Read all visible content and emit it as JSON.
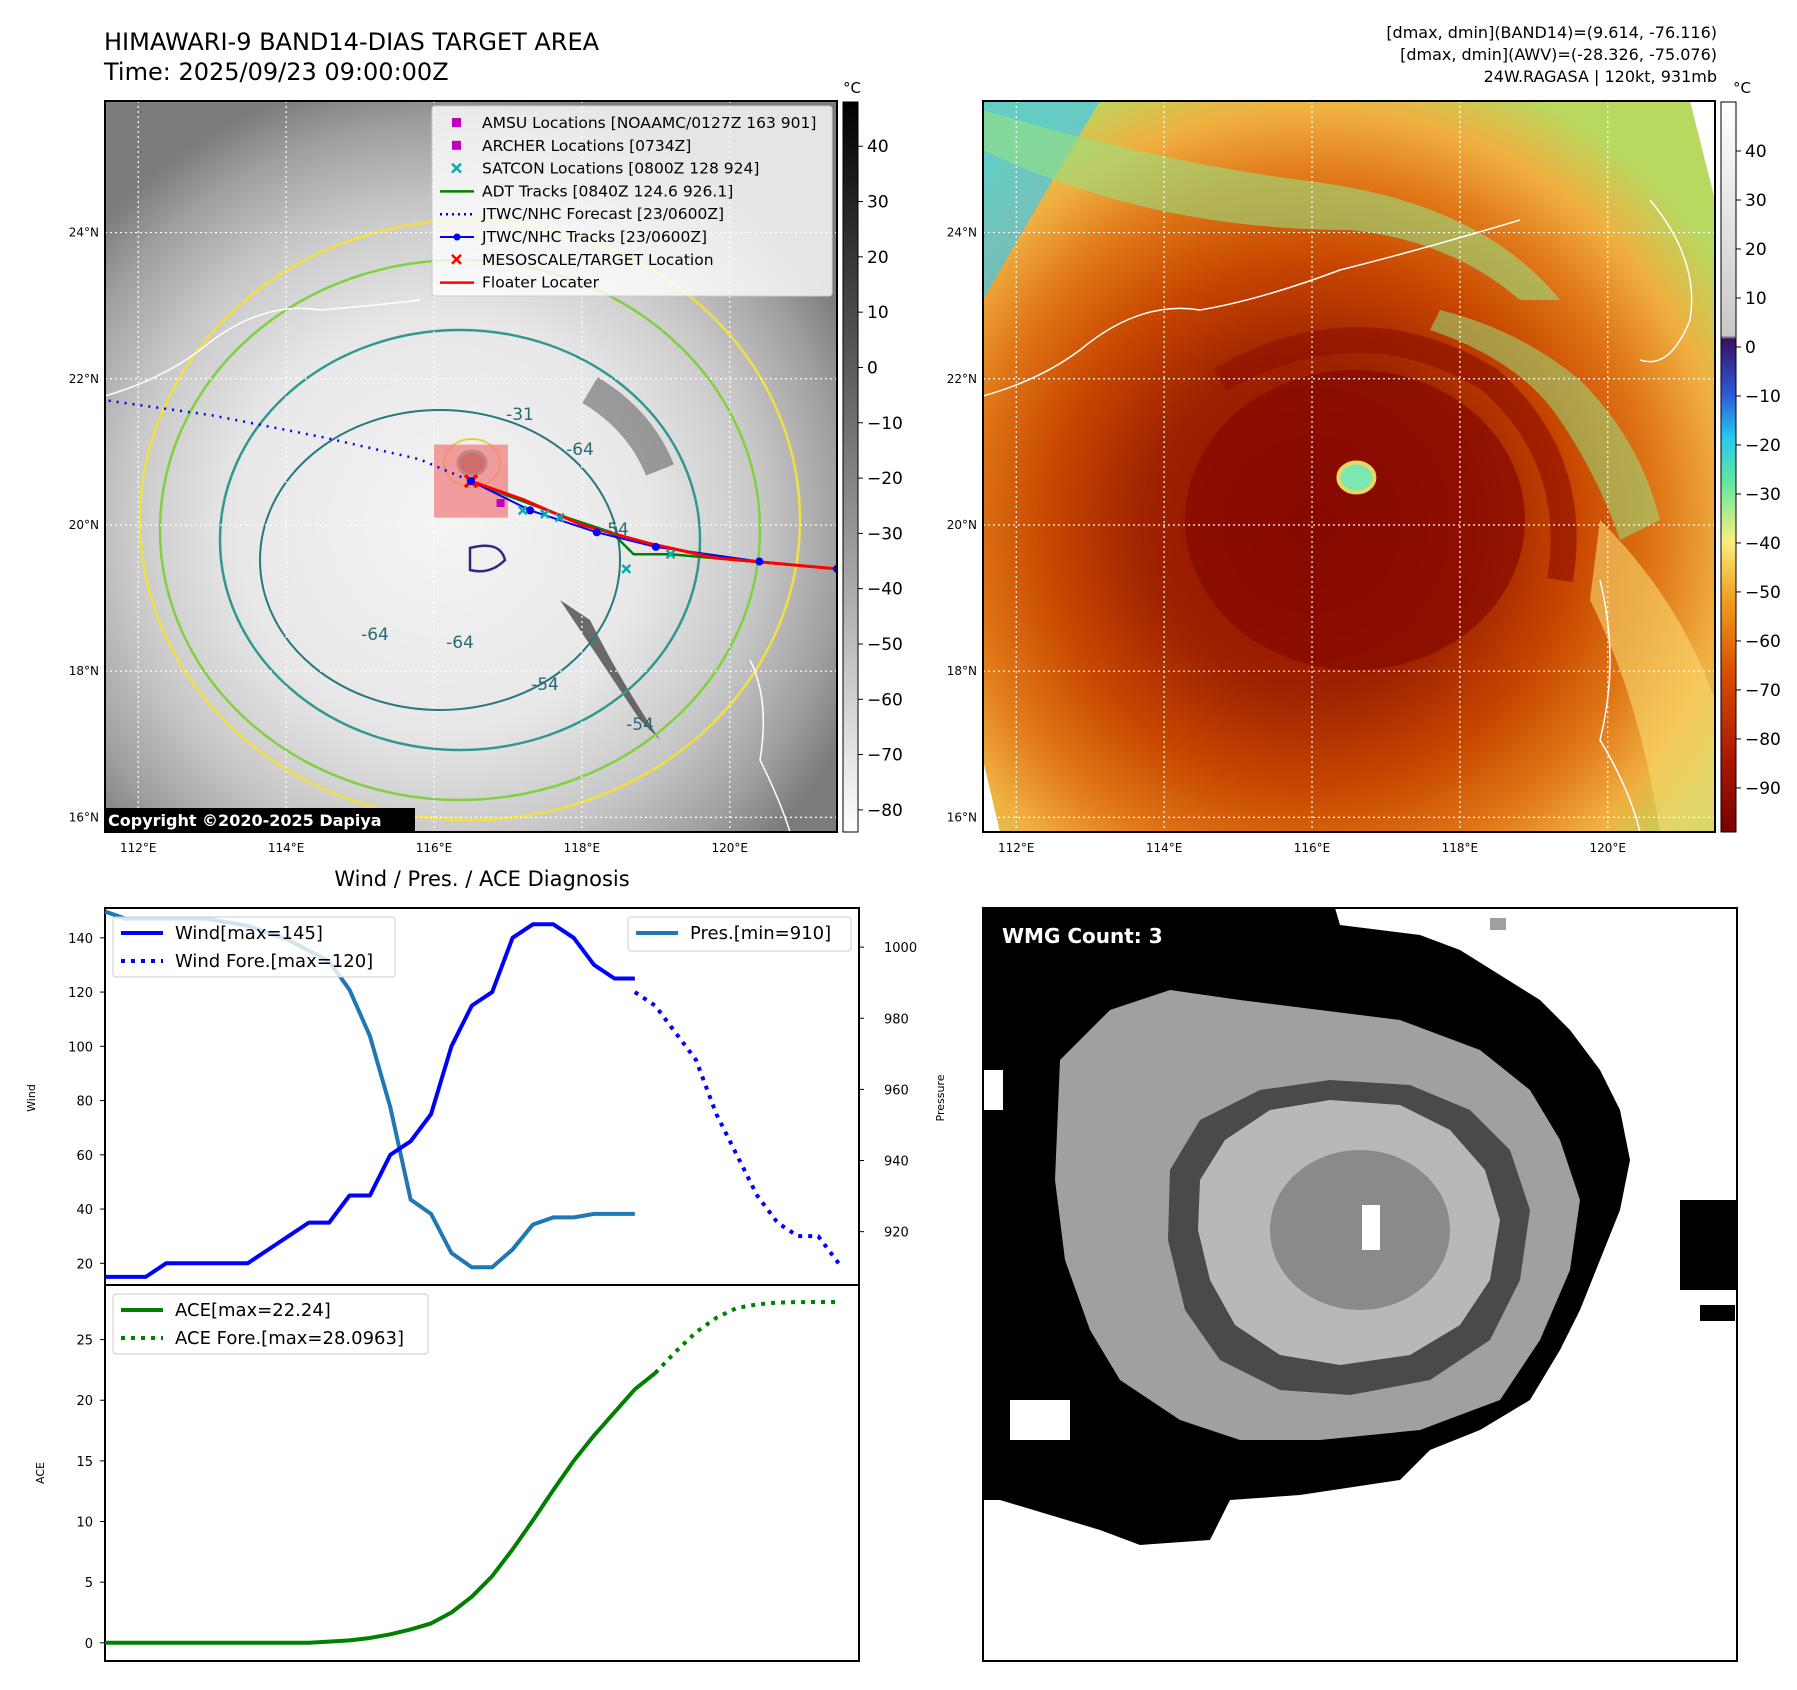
{
  "header": {
    "title_line1": "HIMAWARI-9 BAND14-DIAS TARGET AREA",
    "title_line2": "Time: 2025/09/23 09:00:00Z",
    "info_line1": "[dmax, dmin](BAND14)=(9.614, -76.116)",
    "info_line2": "[dmax, dmin](AWV)=(-28.326, -75.076)",
    "info_line3": "24W.RAGASA | 120kt, 931mb"
  },
  "map_axes": {
    "lon_ticks": [
      "112°E",
      "114°E",
      "116°E",
      "118°E",
      "120°E"
    ],
    "lon_values": [
      112,
      114,
      116,
      118,
      120
    ],
    "lat_ticks": [
      "24°N",
      "22°N",
      "20°N",
      "18°N",
      "16°N"
    ],
    "lat_values": [
      24,
      22,
      20,
      18,
      16
    ],
    "lon_range": [
      111.55,
      121.45
    ],
    "lat_range": [
      15.8,
      25.8
    ]
  },
  "map_left": {
    "copyright": "Copyright ©2020-2025 Dapiya",
    "colorbar_unit": "°C",
    "colorbar_ticks": [
      "40",
      "30",
      "20",
      "10",
      "0",
      "−10",
      "−20",
      "−30",
      "−40",
      "−50",
      "−60",
      "−70",
      "−80"
    ],
    "colorbar_range": [
      -84,
      48
    ],
    "contour_labels": [
      "-64",
      "-64",
      "-64",
      "-54",
      "-54",
      "-54",
      "-31"
    ],
    "legend": [
      {
        "label": "AMSU Locations [NOAAMC/0127Z 163 901]",
        "color": "#c000c0",
        "marker": "square"
      },
      {
        "label": "ARCHER Locations [0734Z]",
        "color": "#c000c0",
        "marker": "square"
      },
      {
        "label": "SATCON Locations [0800Z 128 924]",
        "color": "#00b0b0",
        "marker": "x"
      },
      {
        "label": "ADT Tracks [0840Z 124.6 926.1]",
        "color": "#008000",
        "marker": "line"
      },
      {
        "label": "JTWC/NHC Forecast [23/0600Z]",
        "color": "#0000ff",
        "marker": "dotted"
      },
      {
        "label": "JTWC/NHC Tracks [23/0600Z]",
        "color": "#0000ff",
        "marker": "line-dot"
      },
      {
        "label": "MESOSCALE/TARGET Location",
        "color": "#ff0000",
        "marker": "x"
      },
      {
        "label": "Floater Locater",
        "color": "#ff0000",
        "marker": "line"
      }
    ],
    "storm_center": {
      "lon": 116.5,
      "lat": 20.6
    },
    "forecast_track": [
      {
        "lon": 111.6,
        "lat": 21.7
      },
      {
        "lon": 113.0,
        "lat": 21.5
      },
      {
        "lon": 114.5,
        "lat": 21.2
      },
      {
        "lon": 115.8,
        "lat": 20.9
      },
      {
        "lon": 116.5,
        "lat": 20.6
      }
    ],
    "jtwc_track": [
      {
        "lon": 116.5,
        "lat": 20.6
      },
      {
        "lon": 117.3,
        "lat": 20.2
      },
      {
        "lon": 118.2,
        "lat": 19.9
      },
      {
        "lon": 119.0,
        "lat": 19.7
      },
      {
        "lon": 120.4,
        "lat": 19.5
      },
      {
        "lon": 121.45,
        "lat": 19.4
      }
    ],
    "adt_track": [
      {
        "lon": 121.45,
        "lat": 19.4
      },
      {
        "lon": 120.3,
        "lat": 19.5
      },
      {
        "lon": 119.2,
        "lat": 19.6
      },
      {
        "lon": 118.7,
        "lat": 19.6
      },
      {
        "lon": 118.4,
        "lat": 19.9
      },
      {
        "lon": 117.8,
        "lat": 20.1
      },
      {
        "lon": 117.0,
        "lat": 20.4
      },
      {
        "lon": 116.5,
        "lat": 20.6
      }
    ],
    "floater_track": [
      {
        "lon": 116.5,
        "lat": 20.6
      },
      {
        "lon": 117.2,
        "lat": 20.35
      },
      {
        "lon": 118.0,
        "lat": 20.0
      },
      {
        "lon": 118.9,
        "lat": 19.75
      },
      {
        "lon": 119.8,
        "lat": 19.55
      },
      {
        "lon": 121.45,
        "lat": 19.4
      }
    ],
    "satcon_points": [
      {
        "lon": 117.2,
        "lat": 20.2
      },
      {
        "lon": 117.5,
        "lat": 20.15
      },
      {
        "lon": 117.7,
        "lat": 20.1
      },
      {
        "lon": 118.6,
        "lat": 19.4
      },
      {
        "lon": 119.2,
        "lat": 19.6
      }
    ],
    "archer_point": {
      "lon": 116.9,
      "lat": 20.3
    },
    "target_box": {
      "lon_min": 116.0,
      "lon_max": 117.0,
      "lat_min": 20.1,
      "lat_max": 21.1
    }
  },
  "map_right": {
    "colorbar_unit": "°C",
    "colorbar_ticks": [
      "40",
      "30",
      "20",
      "10",
      "0",
      "−10",
      "−20",
      "−30",
      "−40",
      "−50",
      "−60",
      "−70",
      "−80",
      "−90"
    ],
    "colorbar_range": [
      -99,
      50
    ],
    "eye_center": {
      "lon": 116.6,
      "lat": 20.65
    }
  },
  "diagnosis": {
    "title": "Wind / Pres. / ACE Diagnosis",
    "wind_ylabel": "Wind",
    "pres_ylabel": "Pressure",
    "ace_ylabel": "ACE",
    "wind_ticks": [
      "140",
      "120",
      "100",
      "80",
      "60",
      "40",
      "20"
    ],
    "pres_ticks": [
      "1000",
      "980",
      "960",
      "940",
      "920"
    ],
    "ace_ticks": [
      "25",
      "20",
      "15",
      "10",
      "5",
      "0"
    ],
    "legend_wind": "Wind[max=145]",
    "legend_wind_fore": "Wind Fore.[max=120]",
    "legend_pres": "Pres.[min=910]",
    "legend_ace": "ACE[max=22.24]",
    "legend_ace_fore": "ACE Fore.[max=28.0963]"
  },
  "wmg": {
    "label": "WMG Count: 3"
  },
  "chart_data": [
    {
      "type": "line",
      "title": "Wind / Pres. / ACE Diagnosis",
      "ylabel": "Wind",
      "ylim": [
        12,
        151
      ],
      "xlim": [
        0,
        37
      ],
      "series": [
        {
          "name": "Wind[max=145]",
          "color": "#0000ff",
          "style": "solid",
          "x": [
            0,
            1,
            2,
            3,
            4,
            5,
            6,
            7,
            8,
            9,
            10,
            11,
            12,
            13,
            14,
            15,
            16,
            17,
            18,
            19,
            20,
            21,
            22,
            23,
            24,
            25,
            26
          ],
          "values": [
            15,
            15,
            15,
            20,
            20,
            20,
            20,
            20,
            25,
            30,
            35,
            35,
            45,
            45,
            60,
            65,
            75,
            100,
            115,
            120,
            140,
            145,
            145,
            140,
            130,
            125,
            125
          ]
        },
        {
          "name": "Wind Fore.[max=120]",
          "color": "#0000ff",
          "style": "dotted",
          "x": [
            26,
            27,
            28,
            29,
            30,
            31,
            32,
            33,
            34,
            35,
            36
          ],
          "values": [
            120,
            115,
            105,
            95,
            75,
            60,
            45,
            35,
            30,
            30,
            20
          ]
        }
      ]
    },
    {
      "type": "line",
      "ylabel": "Pressure",
      "ylim": [
        905,
        1011
      ],
      "xlim": [
        0,
        37
      ],
      "series": [
        {
          "name": "Pres.[min=910]",
          "color": "#1f77b4",
          "style": "solid",
          "x": [
            0,
            1,
            2,
            3,
            4,
            5,
            6,
            7,
            8,
            9,
            10,
            11,
            12,
            13,
            14,
            15,
            16,
            17,
            18,
            19,
            20,
            21,
            22,
            23,
            24,
            25,
            26
          ],
          "values": [
            1010,
            1008,
            1008,
            1008,
            1008,
            1008,
            1007,
            1006,
            1004,
            1002,
            999,
            996,
            988,
            975,
            955,
            929,
            925,
            914,
            910,
            910,
            915,
            922,
            924,
            924,
            925,
            925,
            925
          ]
        }
      ]
    },
    {
      "type": "line",
      "ylabel": "ACE",
      "ylim": [
        -1.5,
        29.5
      ],
      "xlim": [
        0,
        37
      ],
      "series": [
        {
          "name": "ACE[max=22.24]",
          "color": "#008000",
          "style": "solid",
          "x": [
            0,
            1,
            2,
            3,
            4,
            5,
            6,
            7,
            8,
            9,
            10,
            11,
            12,
            13,
            14,
            15,
            16,
            17,
            18,
            19,
            20,
            21,
            22,
            23,
            24,
            25,
            26,
            27
          ],
          "values": [
            0,
            0,
            0,
            0,
            0,
            0,
            0,
            0,
            0,
            0,
            0,
            0.1,
            0.2,
            0.4,
            0.7,
            1.1,
            1.6,
            2.5,
            3.8,
            5.5,
            7.7,
            10.1,
            12.6,
            15.0,
            17.1,
            19.0,
            20.9,
            22.24
          ]
        },
        {
          "name": "ACE Fore.[max=28.0963]",
          "color": "#008000",
          "style": "dotted",
          "x": [
            27,
            28,
            29,
            30,
            31,
            32,
            33,
            34,
            35,
            36
          ],
          "values": [
            22.24,
            24.0,
            25.6,
            26.8,
            27.6,
            27.9,
            28.05,
            28.09,
            28.0963,
            28.0963
          ]
        }
      ]
    }
  ]
}
